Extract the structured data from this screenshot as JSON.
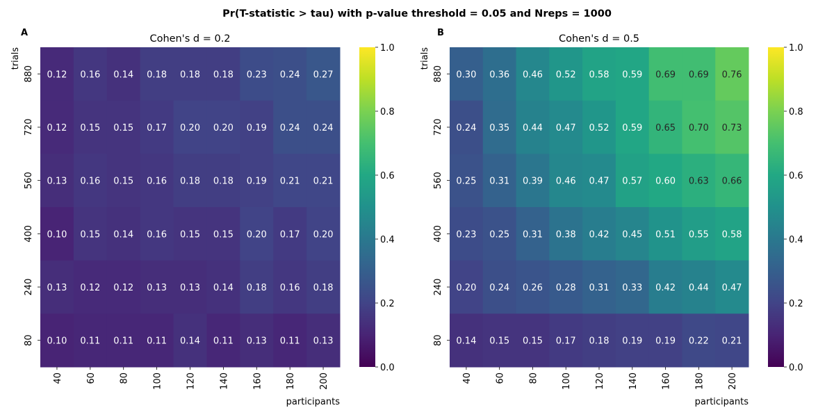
{
  "suptitle": "Pr(T-statistic > tau) with p-value threshold = 0.05 and Nreps = 1000",
  "chart_data": [
    {
      "type": "heatmap",
      "panel_label": "A",
      "title": "Cohen's d = 0.2",
      "xlabel": "participants",
      "ylabel": "trials",
      "x_categories": [
        "40",
        "60",
        "80",
        "100",
        "120",
        "140",
        "160",
        "180",
        "200"
      ],
      "y_categories": [
        "880",
        "720",
        "560",
        "400",
        "240",
        "80"
      ],
      "values": [
        [
          0.12,
          0.16,
          0.14,
          0.18,
          0.18,
          0.18,
          0.23,
          0.24,
          0.27
        ],
        [
          0.12,
          0.15,
          0.15,
          0.17,
          0.2,
          0.2,
          0.19,
          0.24,
          0.24
        ],
        [
          0.13,
          0.16,
          0.15,
          0.16,
          0.18,
          0.18,
          0.19,
          0.21,
          0.21
        ],
        [
          0.1,
          0.15,
          0.14,
          0.16,
          0.15,
          0.15,
          0.2,
          0.17,
          0.2
        ],
        [
          0.13,
          0.12,
          0.12,
          0.13,
          0.13,
          0.14,
          0.18,
          0.16,
          0.18
        ],
        [
          0.1,
          0.11,
          0.11,
          0.11,
          0.14,
          0.11,
          0.13,
          0.11,
          0.13
        ]
      ],
      "colormap": "viridis",
      "vmin": 0,
      "vmax": 1,
      "colorbar_ticks": [
        "0.0",
        "0.2",
        "0.4",
        "0.6",
        "0.8",
        "1.0"
      ]
    },
    {
      "type": "heatmap",
      "panel_label": "B",
      "title": "Cohen's d = 0.5",
      "xlabel": "participants",
      "ylabel": "trials",
      "x_categories": [
        "40",
        "60",
        "80",
        "100",
        "120",
        "140",
        "160",
        "180",
        "200"
      ],
      "y_categories": [
        "880",
        "720",
        "560",
        "400",
        "240",
        "80"
      ],
      "values": [
        [
          0.3,
          0.36,
          0.46,
          0.52,
          0.58,
          0.59,
          0.69,
          0.69,
          0.76
        ],
        [
          0.24,
          0.35,
          0.44,
          0.47,
          0.52,
          0.59,
          0.65,
          0.7,
          0.73
        ],
        [
          0.25,
          0.31,
          0.39,
          0.46,
          0.47,
          0.57,
          0.6,
          0.63,
          0.66
        ],
        [
          0.23,
          0.25,
          0.31,
          0.38,
          0.42,
          0.45,
          0.51,
          0.55,
          0.58
        ],
        [
          0.2,
          0.24,
          0.26,
          0.28,
          0.31,
          0.33,
          0.42,
          0.44,
          0.47
        ],
        [
          0.14,
          0.15,
          0.15,
          0.17,
          0.18,
          0.19,
          0.19,
          0.22,
          0.21
        ]
      ],
      "colormap": "viridis",
      "vmin": 0,
      "vmax": 1,
      "colorbar_ticks": [
        "0.0",
        "0.2",
        "0.4",
        "0.6",
        "0.8",
        "1.0"
      ]
    }
  ]
}
